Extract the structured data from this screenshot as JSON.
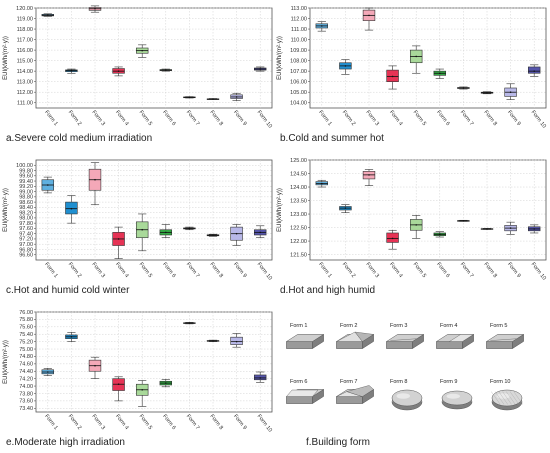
{
  "chart_data": [
    {
      "type": "box",
      "caption": "a.Severe cold medium irradiation",
      "ylabel": "EUI(kWh/(m²·y))",
      "ylim": [
        110.5,
        120.0
      ],
      "yticks": [
        111.0,
        112.0,
        113.0,
        114.0,
        115.0,
        116.0,
        117.0,
        118.0,
        119.0,
        120.0
      ],
      "ytick_labels": [
        "111.00",
        "112.00",
        "113.00",
        "114.00",
        "115.00",
        "116.00",
        "117.00",
        "118.00",
        "119.00",
        "120.00"
      ],
      "categories": [
        "Form 1",
        "Form 2",
        "Form 3",
        "Form 4",
        "Form 5",
        "Form 6",
        "Form 7",
        "Form 8",
        "Form 9",
        "Form 10"
      ],
      "boxes": [
        {
          "min": 119.2,
          "q1": 119.25,
          "median": 119.32,
          "q3": 119.4,
          "max": 119.45
        },
        {
          "min": 113.8,
          "q1": 113.95,
          "median": 114.05,
          "q3": 114.12,
          "max": 114.2
        },
        {
          "min": 119.6,
          "q1": 119.78,
          "median": 119.93,
          "q3": 120.05,
          "max": 120.2
        },
        {
          "min": 113.55,
          "q1": 113.8,
          "median": 114.0,
          "q3": 114.25,
          "max": 114.4
        },
        {
          "min": 115.3,
          "q1": 115.7,
          "median": 115.95,
          "q3": 116.2,
          "max": 116.5
        },
        {
          "min": 114.0,
          "q1": 114.05,
          "median": 114.1,
          "q3": 114.15,
          "max": 114.2
        },
        {
          "min": 111.45,
          "q1": 111.5,
          "median": 111.52,
          "q3": 111.55,
          "max": 111.58
        },
        {
          "min": 111.3,
          "q1": 111.33,
          "median": 111.35,
          "q3": 111.37,
          "max": 111.4
        },
        {
          "min": 111.2,
          "q1": 111.4,
          "median": 111.55,
          "q3": 111.75,
          "max": 111.9
        },
        {
          "min": 114.0,
          "q1": 114.1,
          "median": 114.2,
          "q3": 114.3,
          "max": 114.4
        }
      ]
    },
    {
      "type": "box",
      "caption": "b.Cold and summer hot",
      "ylabel": "EUI(kWh/(m²·y))",
      "ylim": [
        103.5,
        113.0
      ],
      "yticks": [
        104.0,
        105.0,
        106.0,
        107.0,
        108.0,
        109.0,
        110.0,
        111.0,
        112.0,
        113.0
      ],
      "ytick_labels": [
        "104.00",
        "105.00",
        "106.00",
        "107.00",
        "108.00",
        "109.00",
        "110.00",
        "111.00",
        "112.00",
        "113.00"
      ],
      "categories": [
        "Form 1",
        "Form 2",
        "Form 3",
        "Form 4",
        "Form 5",
        "Form 6",
        "Form 7",
        "Form 8",
        "Form 9",
        "Form 10"
      ],
      "boxes": [
        {
          "min": 110.8,
          "q1": 111.1,
          "median": 111.3,
          "q3": 111.5,
          "max": 111.7
        },
        {
          "min": 106.7,
          "q1": 107.2,
          "median": 107.5,
          "q3": 107.8,
          "max": 108.1
        },
        {
          "min": 110.9,
          "q1": 111.8,
          "median": 112.3,
          "q3": 112.8,
          "max": 113.0
        },
        {
          "min": 105.3,
          "q1": 106.0,
          "median": 106.5,
          "q3": 107.1,
          "max": 107.5
        },
        {
          "min": 106.8,
          "q1": 107.8,
          "median": 108.4,
          "q3": 109.0,
          "max": 109.4
        },
        {
          "min": 106.3,
          "q1": 106.6,
          "median": 106.8,
          "q3": 107.0,
          "max": 107.2
        },
        {
          "min": 105.3,
          "q1": 105.35,
          "median": 105.4,
          "q3": 105.45,
          "max": 105.5
        },
        {
          "min": 104.85,
          "q1": 104.9,
          "median": 104.95,
          "q3": 105.0,
          "max": 105.05
        },
        {
          "min": 104.3,
          "q1": 104.6,
          "median": 105.0,
          "q3": 105.4,
          "max": 105.8
        },
        {
          "min": 106.5,
          "q1": 106.8,
          "median": 107.0,
          "q3": 107.4,
          "max": 107.6
        }
      ]
    },
    {
      "type": "box",
      "caption": "c.Hot and humid cold winter",
      "ylabel": "EUI(kWh/(m²·y))",
      "ylim": [
        96.4,
        100.2
      ],
      "yticks": [
        96.6,
        96.8,
        97.0,
        97.2,
        97.4,
        97.6,
        97.8,
        98.0,
        98.2,
        98.4,
        98.6,
        98.8,
        99.0,
        99.2,
        99.4,
        99.6,
        99.8,
        100.0
      ],
      "ytick_labels": [
        "96.60",
        "96.80",
        "97.00",
        "97.20",
        "97.40",
        "97.60",
        "97.80",
        "98.00",
        "98.20",
        "98.40",
        "98.60",
        "98.80",
        "99.00",
        "99.20",
        "99.40",
        "99.60",
        "99.80",
        "100.00"
      ],
      "categories": [
        "Form 1",
        "Form 2",
        "Form 3",
        "Form 4",
        "Form 5",
        "Form 6",
        "Form 7",
        "Form 8",
        "Form 9",
        "Form 10"
      ],
      "boxes": [
        {
          "min": 98.95,
          "q1": 99.05,
          "median": 99.25,
          "q3": 99.45,
          "max": 99.55
        },
        {
          "min": 97.8,
          "q1": 98.15,
          "median": 98.35,
          "q3": 98.6,
          "max": 98.85
        },
        {
          "min": 98.5,
          "q1": 99.05,
          "median": 99.45,
          "q3": 99.85,
          "max": 100.1
        },
        {
          "min": 96.45,
          "q1": 96.95,
          "median": 97.2,
          "q3": 97.45,
          "max": 97.65
        },
        {
          "min": 96.75,
          "q1": 97.25,
          "median": 97.55,
          "q3": 97.85,
          "max": 98.15
        },
        {
          "min": 97.25,
          "q1": 97.35,
          "median": 97.45,
          "q3": 97.55,
          "max": 97.75
        },
        {
          "min": 97.55,
          "q1": 97.58,
          "median": 97.6,
          "q3": 97.62,
          "max": 97.65
        },
        {
          "min": 97.3,
          "q1": 97.32,
          "median": 97.34,
          "q3": 97.36,
          "max": 97.38
        },
        {
          "min": 96.95,
          "q1": 97.15,
          "median": 97.4,
          "q3": 97.65,
          "max": 97.75
        },
        {
          "min": 97.25,
          "q1": 97.35,
          "median": 97.45,
          "q3": 97.55,
          "max": 97.7
        }
      ]
    },
    {
      "type": "box",
      "caption": "d.Hot and high humid",
      "ylabel": "EUI(kWh/(m²·y))",
      "ylim": [
        121.3,
        125.0
      ],
      "yticks": [
        121.5,
        122.0,
        122.5,
        123.0,
        123.5,
        124.0,
        124.5,
        125.0
      ],
      "ytick_labels": [
        "121.50",
        "122.00",
        "122.50",
        "123.00",
        "123.50",
        "124.00",
        "124.50",
        "125.00"
      ],
      "categories": [
        "Form 1",
        "Form 2",
        "Form 3",
        "Form 4",
        "Form 5",
        "Form 6",
        "Form 7",
        "Form 8",
        "Form 9",
        "Form 10"
      ],
      "boxes": [
        {
          "min": 124.0,
          "q1": 124.08,
          "median": 124.13,
          "q3": 124.2,
          "max": 124.25
        },
        {
          "min": 123.05,
          "q1": 123.15,
          "median": 123.22,
          "q3": 123.28,
          "max": 123.35
        },
        {
          "min": 124.05,
          "q1": 124.3,
          "median": 124.45,
          "q3": 124.58,
          "max": 124.65
        },
        {
          "min": 121.7,
          "q1": 121.95,
          "median": 122.1,
          "q3": 122.3,
          "max": 122.4
        },
        {
          "min": 122.1,
          "q1": 122.4,
          "median": 122.6,
          "q3": 122.8,
          "max": 122.95
        },
        {
          "min": 122.15,
          "q1": 122.2,
          "median": 122.25,
          "q3": 122.3,
          "max": 122.35
        },
        {
          "min": 122.73,
          "q1": 122.74,
          "median": 122.75,
          "q3": 122.76,
          "max": 122.77
        },
        {
          "min": 122.43,
          "q1": 122.44,
          "median": 122.45,
          "q3": 122.46,
          "max": 122.47
        },
        {
          "min": 122.25,
          "q1": 122.38,
          "median": 122.48,
          "q3": 122.58,
          "max": 122.7
        },
        {
          "min": 122.3,
          "q1": 122.38,
          "median": 122.45,
          "q3": 122.53,
          "max": 122.6
        }
      ]
    },
    {
      "type": "box",
      "caption": "e.Moderate high irradiation",
      "ylabel": "EUI(kWh/(m²·y))",
      "ylim": [
        73.3,
        76.0
      ],
      "yticks": [
        73.4,
        73.6,
        73.8,
        74.0,
        74.2,
        74.4,
        74.6,
        74.8,
        75.0,
        75.2,
        75.4,
        75.6,
        75.8,
        76.0
      ],
      "ytick_labels": [
        "73.40",
        "73.60",
        "73.80",
        "74.00",
        "74.20",
        "74.40",
        "74.60",
        "74.80",
        "75.00",
        "75.20",
        "75.40",
        "75.60",
        "75.80",
        "76.00"
      ],
      "categories": [
        "Form 1",
        "Form 2",
        "Form 3",
        "Form 4",
        "Form 5",
        "Form 6",
        "Form 7",
        "Form 8",
        "Form 9",
        "Form 10"
      ],
      "boxes": [
        {
          "min": 74.28,
          "q1": 74.33,
          "median": 74.38,
          "q3": 74.44,
          "max": 74.48
        },
        {
          "min": 75.2,
          "q1": 75.28,
          "median": 75.33,
          "q3": 75.38,
          "max": 75.45
        },
        {
          "min": 74.2,
          "q1": 74.4,
          "median": 74.55,
          "q3": 74.7,
          "max": 74.78
        },
        {
          "min": 73.6,
          "q1": 73.88,
          "median": 74.05,
          "q3": 74.2,
          "max": 74.25
        },
        {
          "min": 73.45,
          "q1": 73.75,
          "median": 73.9,
          "q3": 74.05,
          "max": 74.15
        },
        {
          "min": 73.98,
          "q1": 74.03,
          "median": 74.08,
          "q3": 74.13,
          "max": 74.18
        },
        {
          "min": 75.68,
          "q1": 75.69,
          "median": 75.7,
          "q3": 75.71,
          "max": 75.72
        },
        {
          "min": 75.2,
          "q1": 75.21,
          "median": 75.22,
          "q3": 75.23,
          "max": 75.24
        },
        {
          "min": 75.05,
          "q1": 75.12,
          "median": 75.2,
          "q3": 75.32,
          "max": 75.42
        },
        {
          "min": 74.1,
          "q1": 74.17,
          "median": 74.22,
          "q3": 74.3,
          "max": 74.38
        }
      ]
    }
  ],
  "box_colors": [
    "#5fb0e0",
    "#1f8fd0",
    "#f4a8b8",
    "#e63355",
    "#a9d99a",
    "#33aa44",
    "#cccccc",
    "#ffffff",
    "#b8b8e8",
    "#5555aa"
  ],
  "building_form": {
    "caption": "f.Building form",
    "labels": [
      "Form 1",
      "Form 2",
      "Form 3",
      "Form 4",
      "Form 5",
      "Form 6",
      "Form 7",
      "Form 8",
      "Form 9",
      "Form 10"
    ]
  }
}
